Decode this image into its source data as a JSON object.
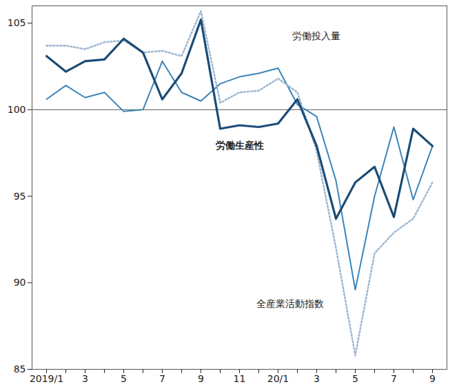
{
  "chart_data": {
    "type": "line",
    "categories": [
      "2019/1",
      null,
      "3",
      null,
      "5",
      null,
      "7",
      null,
      "9",
      null,
      "11",
      null,
      "20/1",
      null,
      "3",
      null,
      "5",
      null,
      "7",
      null,
      "9"
    ],
    "series": [
      {
        "name": "労働投入量",
        "color": "#3a84b8",
        "line_style": "solid",
        "values": [
          100.6,
          101.4,
          100.7,
          101.0,
          99.9,
          100.0,
          102.8,
          101.0,
          100.5,
          101.5,
          101.9,
          102.1,
          102.4,
          100.3,
          99.6,
          95.9,
          89.6,
          95.0,
          99.0,
          94.8,
          97.9
        ]
      },
      {
        "name": "全産業活動指数",
        "color": "#9fb8d0",
        "line_style": "dotted",
        "values": [
          103.7,
          103.7,
          103.5,
          103.9,
          104.0,
          103.3,
          103.4,
          103.1,
          105.7,
          100.4,
          101.0,
          101.1,
          101.8,
          101.0,
          97.6,
          92.0,
          85.8,
          91.7,
          92.9,
          93.7,
          95.8
        ]
      },
      {
        "name": "労働生産性",
        "color": "#1b4b75",
        "line_style": "solid",
        "values": [
          103.1,
          102.2,
          102.8,
          102.9,
          104.1,
          103.3,
          100.6,
          102.1,
          105.2,
          98.9,
          99.1,
          99.0,
          99.2,
          100.6,
          97.9,
          93.7,
          95.8,
          96.7,
          93.8,
          98.9,
          97.9
        ]
      }
    ],
    "ylim": [
      85,
      106
    ],
    "yticks": [
      85,
      90,
      95,
      100,
      105
    ],
    "grid": false
  }
}
